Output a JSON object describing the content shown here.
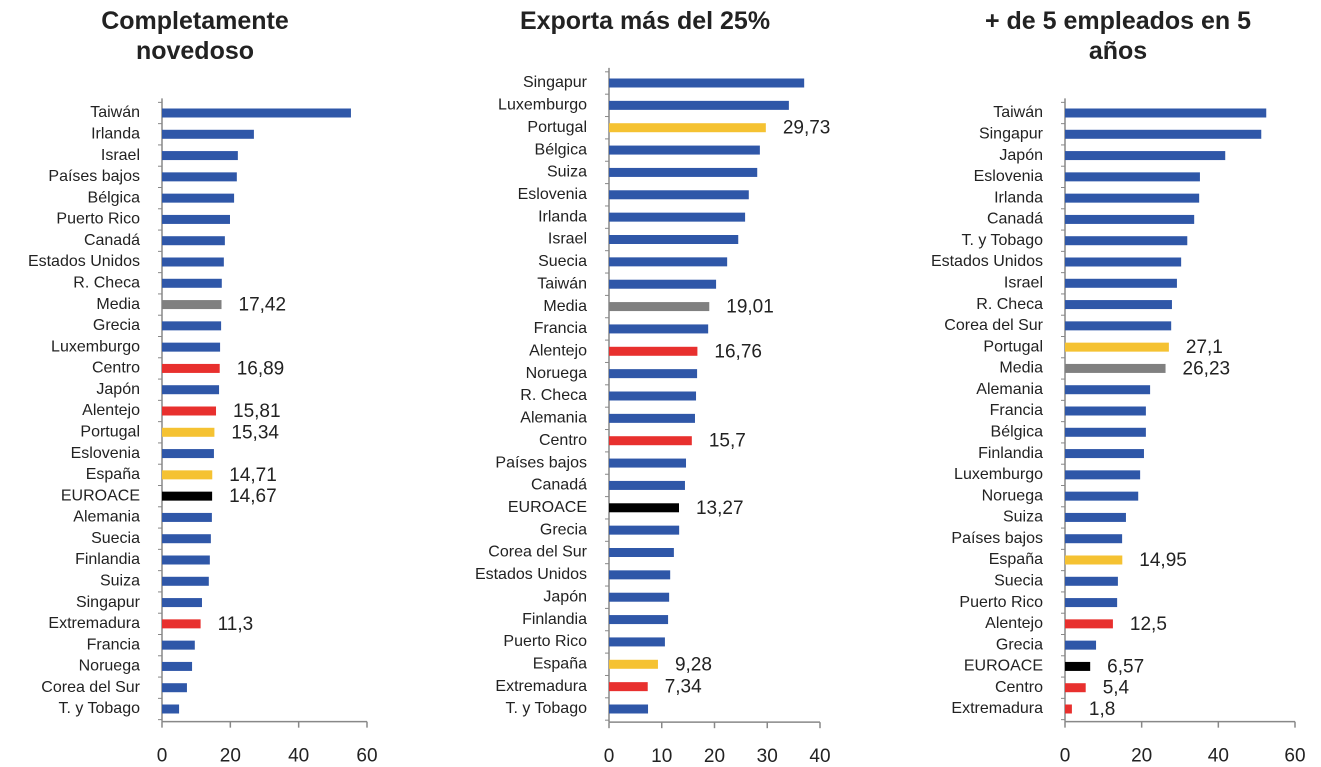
{
  "chart_data": [
    {
      "type": "bar",
      "orientation": "horizontal",
      "title": "Completamente novedoso",
      "categories": [
        "Taiwán",
        "Irlanda",
        "Israel",
        "Países bajos",
        "Bélgica",
        "Puerto Rico",
        "Canadá",
        "Estados Unidos",
        "R. Checa",
        "Media",
        "Grecia",
        "Luxemburgo",
        "Centro",
        "Japón",
        "Alentejo",
        "Portugal",
        "Eslovenia",
        "España",
        "EUROACE",
        "Alemania",
        "Suecia",
        "Finlandia",
        "Suiza",
        "Singapur",
        "Extremadura",
        "Francia",
        "Noruega",
        "Corea del Sur",
        "T. y Tobago"
      ],
      "values": [
        55.3,
        26.9,
        22.2,
        21.9,
        21.1,
        19.9,
        18.4,
        18.1,
        17.5,
        17.42,
        17.3,
        17.0,
        16.89,
        16.7,
        15.81,
        15.34,
        15.2,
        14.71,
        14.67,
        14.6,
        14.3,
        14.0,
        13.7,
        11.7,
        11.3,
        9.6,
        8.8,
        7.3,
        5.0
      ],
      "value_labels": [
        null,
        null,
        null,
        null,
        null,
        null,
        null,
        null,
        null,
        "17,42",
        null,
        null,
        "16,89",
        null,
        "15,81",
        "15,34",
        null,
        "14,71",
        "14,67",
        null,
        null,
        null,
        null,
        null,
        "11,3",
        null,
        null,
        null,
        null
      ],
      "colors": [
        "#2f57a8",
        "#2f57a8",
        "#2f57a8",
        "#2f57a8",
        "#2f57a8",
        "#2f57a8",
        "#2f57a8",
        "#2f57a8",
        "#2f57a8",
        "#808080",
        "#2f57a8",
        "#2f57a8",
        "#e8302e",
        "#2f57a8",
        "#e8302e",
        "#f5c232",
        "#2f57a8",
        "#f5c232",
        "#000000",
        "#2f57a8",
        "#2f57a8",
        "#2f57a8",
        "#2f57a8",
        "#2f57a8",
        "#e8302e",
        "#2f57a8",
        "#2f57a8",
        "#2f57a8",
        "#2f57a8"
      ],
      "xlim": [
        0,
        60
      ],
      "xticks": [
        0,
        20,
        40,
        60
      ]
    },
    {
      "type": "bar",
      "orientation": "horizontal",
      "title": "Exporta más del 25%",
      "categories": [
        "Singapur",
        "Luxemburgo",
        "Portugal",
        "Bélgica",
        "Suiza",
        "Eslovenia",
        "Irlanda",
        "Israel",
        "Suecia",
        "Taiwán",
        "Media",
        "Francia",
        "Alentejo",
        "Noruega",
        "R. Checa",
        "Alemania",
        "Centro",
        "Países bajos",
        "Canadá",
        "EUROACE",
        "Grecia",
        "Corea del Sur",
        "Estados Unidos",
        "Japón",
        "Finlandia",
        "Puerto Rico",
        "España",
        "Extremadura",
        "T. y Tobago"
      ],
      "values": [
        37.0,
        34.1,
        29.73,
        28.6,
        28.1,
        26.5,
        25.8,
        24.5,
        22.4,
        20.3,
        19.01,
        18.8,
        16.76,
        16.7,
        16.5,
        16.3,
        15.7,
        14.6,
        14.4,
        13.27,
        13.3,
        12.3,
        11.6,
        11.4,
        11.2,
        10.6,
        9.28,
        7.34,
        7.4
      ],
      "value_labels": [
        null,
        null,
        "29,73",
        null,
        null,
        null,
        null,
        null,
        null,
        null,
        "19,01",
        null,
        "16,76",
        null,
        null,
        null,
        "15,7",
        null,
        null,
        "13,27",
        null,
        null,
        null,
        null,
        null,
        null,
        "9,28",
        "7,34",
        null
      ],
      "colors": [
        "#2f57a8",
        "#2f57a8",
        "#f5c232",
        "#2f57a8",
        "#2f57a8",
        "#2f57a8",
        "#2f57a8",
        "#2f57a8",
        "#2f57a8",
        "#2f57a8",
        "#808080",
        "#2f57a8",
        "#e8302e",
        "#2f57a8",
        "#2f57a8",
        "#2f57a8",
        "#e8302e",
        "#2f57a8",
        "#2f57a8",
        "#000000",
        "#2f57a8",
        "#2f57a8",
        "#2f57a8",
        "#2f57a8",
        "#2f57a8",
        "#2f57a8",
        "#f5c232",
        "#e8302e",
        "#2f57a8"
      ],
      "xlim": [
        0,
        40
      ],
      "xticks": [
        0,
        10,
        20,
        30,
        40
      ]
    },
    {
      "type": "bar",
      "orientation": "horizontal",
      "title": "+ de 5 empleados  en 5 años",
      "categories": [
        "Taiwán",
        "Singapur",
        "Japón",
        "Eslovenia",
        "Irlanda",
        "Canadá",
        "T. y Tobago",
        "Estados Unidos",
        "Israel",
        "R. Checa",
        "Corea del Sur",
        "Portugal",
        "Media",
        "Alemania",
        "Francia",
        "Bélgica",
        "Finlandia",
        "Luxemburgo",
        "Noruega",
        "Suiza",
        "Países bajos",
        "España",
        "Suecia",
        "Puerto Rico",
        "Alentejo",
        "Grecia",
        "EUROACE",
        "Centro",
        "Extremadura"
      ],
      "values": [
        52.5,
        51.2,
        41.8,
        35.2,
        35.0,
        33.7,
        31.9,
        30.3,
        29.2,
        27.9,
        27.7,
        27.1,
        26.23,
        22.2,
        21.1,
        21.1,
        20.6,
        19.6,
        19.1,
        15.9,
        14.9,
        14.95,
        13.8,
        13.6,
        12.5,
        8.1,
        6.57,
        5.4,
        1.8
      ],
      "value_labels": [
        null,
        null,
        null,
        null,
        null,
        null,
        null,
        null,
        null,
        null,
        null,
        "27,1",
        "26,23",
        null,
        null,
        null,
        null,
        null,
        null,
        null,
        null,
        "14,95",
        null,
        null,
        "12,5",
        null,
        "6,57",
        "5,4",
        "1,8"
      ],
      "colors": [
        "#2f57a8",
        "#2f57a8",
        "#2f57a8",
        "#2f57a8",
        "#2f57a8",
        "#2f57a8",
        "#2f57a8",
        "#2f57a8",
        "#2f57a8",
        "#2f57a8",
        "#2f57a8",
        "#f5c232",
        "#808080",
        "#2f57a8",
        "#2f57a8",
        "#2f57a8",
        "#2f57a8",
        "#2f57a8",
        "#2f57a8",
        "#2f57a8",
        "#2f57a8",
        "#f5c232",
        "#2f57a8",
        "#2f57a8",
        "#e8302e",
        "#2f57a8",
        "#000000",
        "#e8302e",
        "#e8302e"
      ],
      "xlim": [
        0,
        60
      ],
      "xticks": [
        0,
        20,
        40,
        60
      ]
    }
  ]
}
